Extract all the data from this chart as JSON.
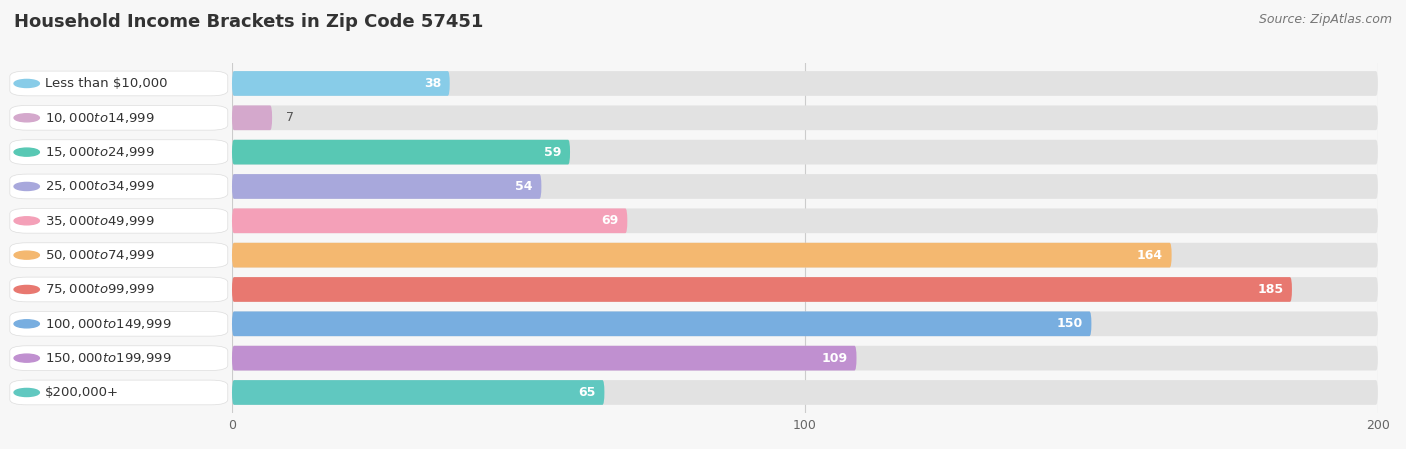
{
  "title": "Household Income Brackets in Zip Code 57451",
  "source": "Source: ZipAtlas.com",
  "categories": [
    "Less than $10,000",
    "$10,000 to $14,999",
    "$15,000 to $24,999",
    "$25,000 to $34,999",
    "$35,000 to $49,999",
    "$50,000 to $74,999",
    "$75,000 to $99,999",
    "$100,000 to $149,999",
    "$150,000 to $199,999",
    "$200,000+"
  ],
  "values": [
    38,
    7,
    59,
    54,
    69,
    164,
    185,
    150,
    109,
    65
  ],
  "bar_colors": [
    "#88cce8",
    "#d4a8cc",
    "#58c8b4",
    "#a8a8dc",
    "#f4a0b8",
    "#f4b870",
    "#e87870",
    "#78aee0",
    "#c090d0",
    "#60c8c0"
  ],
  "bg_color": "#f7f7f7",
  "bar_bg_color": "#e2e2e2",
  "label_bg_color": "#ffffff",
  "xlim_data": [
    0,
    200
  ],
  "xticks": [
    0,
    100,
    200
  ],
  "title_fontsize": 13,
  "label_fontsize": 9.5,
  "value_fontsize": 9,
  "source_fontsize": 9
}
